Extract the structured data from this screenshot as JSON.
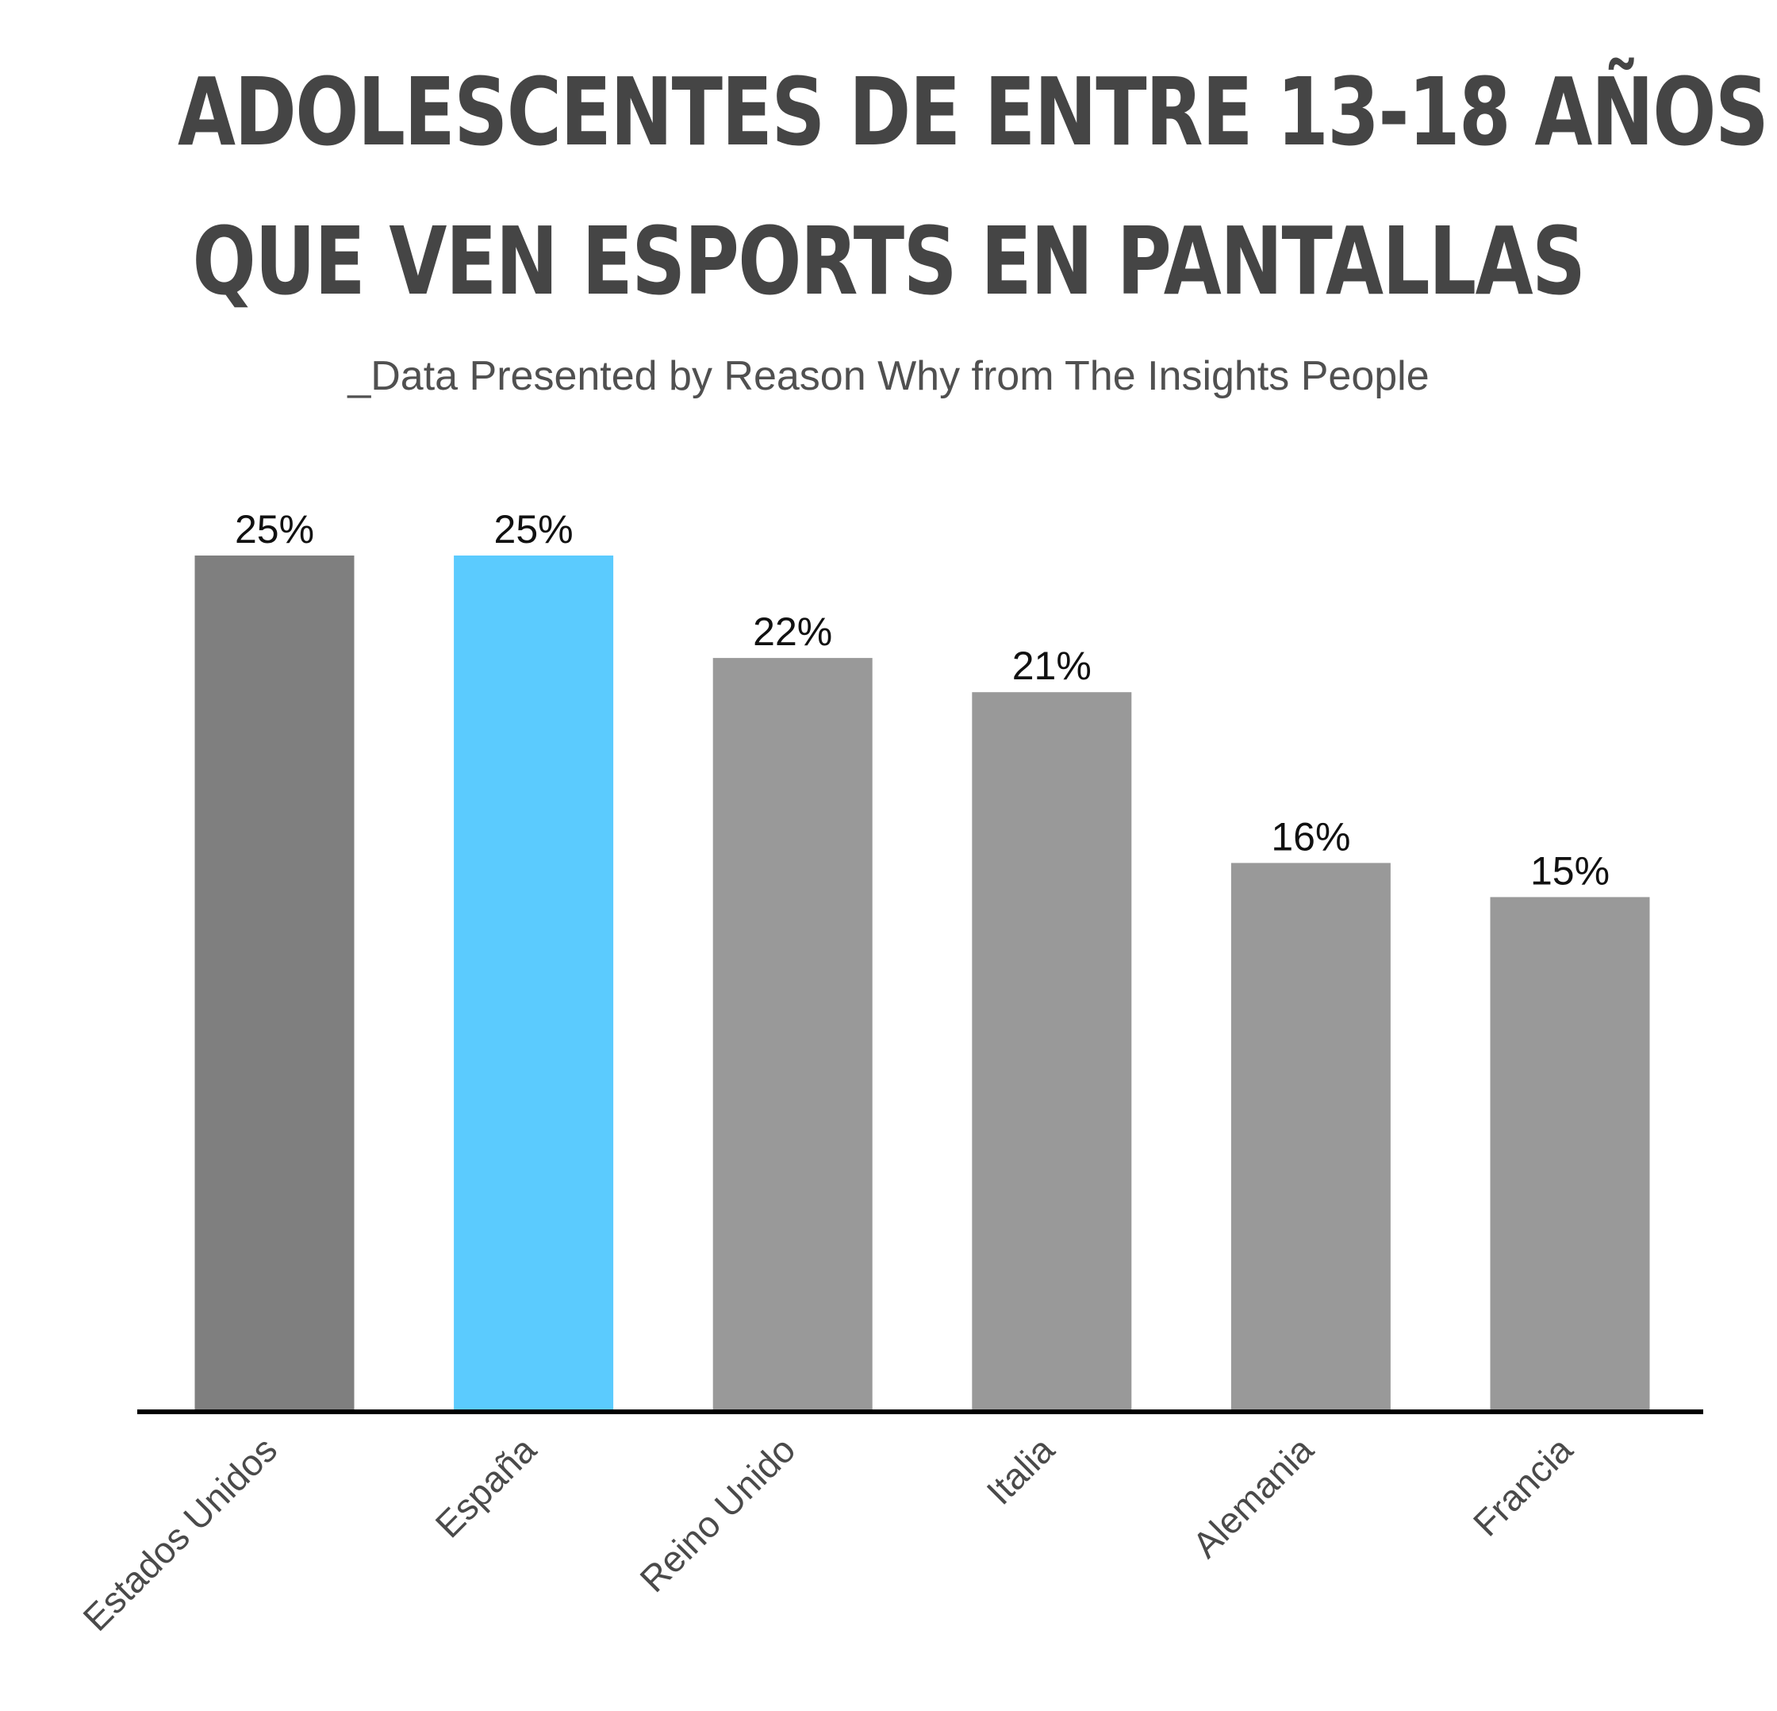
{
  "chart_data": {
    "type": "bar",
    "title": [
      "ADOLESCENTES DE ENTRE 13-18 AÑOS",
      "QUE VEN ESPORTS EN PANTALLAS"
    ],
    "subtitle": "_Data Presented by Reason Why from The Insights People",
    "categories": [
      "Estados Unidos",
      "España",
      "Reino Unido",
      "Italia",
      "Alemania",
      "Francia"
    ],
    "values": [
      25,
      25,
      22,
      21,
      16,
      15
    ],
    "value_labels": [
      "25%",
      "25%",
      "22%",
      "21%",
      "16%",
      "15%"
    ],
    "unit": "%",
    "ylim": [
      0,
      25
    ],
    "grid": false,
    "legend": "none",
    "bar_colors": [
      "#7f7f7f",
      "#5bcbfe",
      "#999999",
      "#999999",
      "#999999",
      "#999999"
    ],
    "axis_color": "#000000"
  }
}
